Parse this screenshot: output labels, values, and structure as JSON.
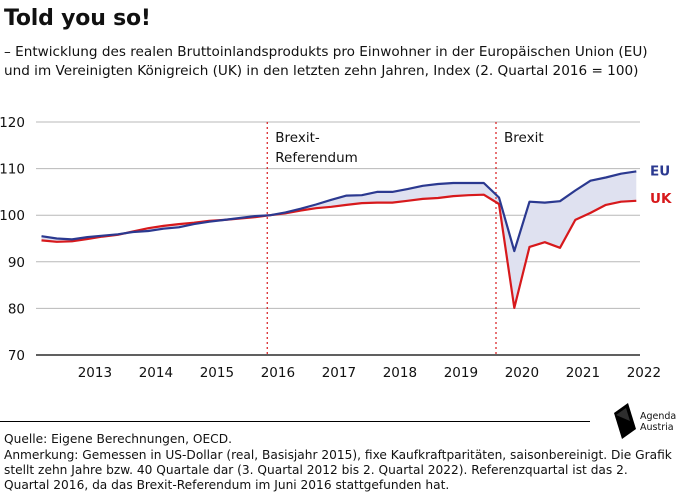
{
  "header": {
    "title": "Told you so!",
    "subtitle": "– Entwicklung des realen Bruttoinlandsprodukts pro Einwohner in der Europäischen Union (EU) und im Vereinigten Königreich (UK) in den letzten zehn Jahren, Index (2. Quartal 2016 = 100)"
  },
  "footer": {
    "source": "Quelle: Eigene Berechnungen, OECD.",
    "note": "Anmerkung: Gemessen in US-Dollar (real, Basisjahr 2015), fixe Kaufkraftparitäten, saisonbereinigt. Die Grafik stellt zehn Jahre bzw. 40 Quartale dar (3. Quartal 2012 bis 2. Quartal 2022). Referenzquartal ist das 2. Quartal 2016, da das Brexit-Referendum im Juni 2016 stattgefunden hat."
  },
  "logo": {
    "line1": "Agenda",
    "line2": "Austria",
    "icon": "agenda-austria-logo-icon"
  },
  "colors": {
    "eu": "#2b3990",
    "uk": "#d7191c",
    "gap_fill": "#dfe1f0",
    "event_line": "#d7191c",
    "grid": "#b8b8b8"
  },
  "chart_data": {
    "type": "line",
    "title": "Told you so!",
    "ylim": [
      70,
      120
    ],
    "yticks": [
      70,
      80,
      90,
      100,
      110,
      120
    ],
    "xlim": [
      "2012-Q3",
      "2022-Q2"
    ],
    "x_tick_labels": [
      "2013",
      "2014",
      "2015",
      "2016",
      "2017",
      "2018",
      "2019",
      "2020",
      "2021",
      "2022"
    ],
    "grid": true,
    "legend": "line-end labels, right",
    "shaded_area": "gap between EU and UK",
    "x": [
      "2012-Q3",
      "2012-Q4",
      "2013-Q1",
      "2013-Q2",
      "2013-Q3",
      "2013-Q4",
      "2014-Q1",
      "2014-Q2",
      "2014-Q3",
      "2014-Q4",
      "2015-Q1",
      "2015-Q2",
      "2015-Q3",
      "2015-Q4",
      "2016-Q1",
      "2016-Q2",
      "2016-Q3",
      "2016-Q4",
      "2017-Q1",
      "2017-Q2",
      "2017-Q3",
      "2017-Q4",
      "2018-Q1",
      "2018-Q2",
      "2018-Q3",
      "2018-Q4",
      "2019-Q1",
      "2019-Q2",
      "2019-Q3",
      "2019-Q4",
      "2020-Q1",
      "2020-Q2",
      "2020-Q3",
      "2020-Q4",
      "2021-Q1",
      "2021-Q2",
      "2021-Q3",
      "2021-Q4",
      "2022-Q1",
      "2022-Q2"
    ],
    "series": [
      {
        "name": "EU",
        "values": [
          95.5,
          95.0,
          94.8,
          95.3,
          95.6,
          95.9,
          96.4,
          96.6,
          97.1,
          97.4,
          98.1,
          98.6,
          99.0,
          99.4,
          99.8,
          100.0,
          100.6,
          101.4,
          102.3,
          103.3,
          104.2,
          104.3,
          105.0,
          105.0,
          105.6,
          106.3,
          106.7,
          106.9,
          106.9,
          106.9,
          103.8,
          92.3,
          102.9,
          102.7,
          103.0,
          105.3,
          107.4,
          108.1,
          108.9,
          109.4
        ]
      },
      {
        "name": "UK",
        "values": [
          94.6,
          94.3,
          94.4,
          94.9,
          95.4,
          95.8,
          96.5,
          97.2,
          97.7,
          98.1,
          98.4,
          98.8,
          99.0,
          99.3,
          99.6,
          100.0,
          100.4,
          101.0,
          101.5,
          101.8,
          102.2,
          102.6,
          102.7,
          102.7,
          103.1,
          103.5,
          103.7,
          104.1,
          104.3,
          104.4,
          102.4,
          80.1,
          93.2,
          94.2,
          93.0,
          99.0,
          100.5,
          102.2,
          102.9,
          103.1
        ]
      }
    ],
    "annotations": [
      {
        "label_line1": "Brexit-",
        "label_line2": "Referendum",
        "x": "2016-Q2"
      },
      {
        "label_line1": "Brexit",
        "label_line2": "",
        "x": "2020-Q1"
      }
    ]
  }
}
